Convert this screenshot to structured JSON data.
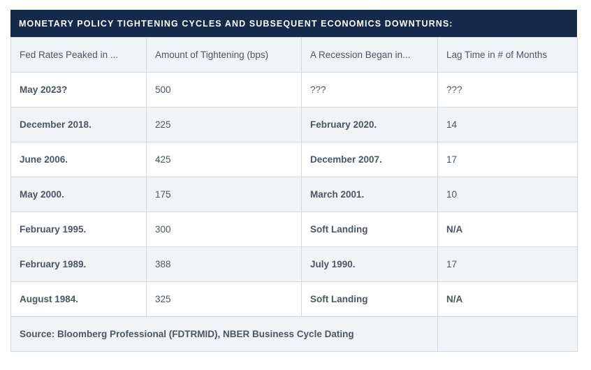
{
  "title": "MONETARY POLICY TIGHTENING CYCLES AND SUBSEQUENT ECONOMICS DOWNTURNS:",
  "headers": [
    "Fed Rates Peaked in ...",
    "Amount of Tightening (bps)",
    "A Recession Began in...",
    "Lag Time in # of Months"
  ],
  "rows": [
    [
      "May 2023?",
      "500",
      "???",
      "???"
    ],
    [
      "December 2018.",
      "225",
      "February 2020.",
      "14"
    ],
    [
      "June 2006.",
      "425",
      "December 2007.",
      "17"
    ],
    [
      "May 2000.",
      "175",
      "March 2001.",
      "10"
    ],
    [
      "February 1995.",
      "300",
      "Soft Landing",
      "N/A"
    ],
    [
      "February 1989.",
      "388",
      "July 1990.",
      "17"
    ],
    [
      "August 1984.",
      "325",
      "Soft Landing",
      "N/A"
    ]
  ],
  "source": "Source: Bloomberg Professional (FDTRMID), NBER Business Cycle Dating",
  "colors": {
    "title_bg": "#152a4a",
    "shaded_row": "#f1f4f7",
    "text": "#4a5566",
    "border": "#d5d9de"
  }
}
